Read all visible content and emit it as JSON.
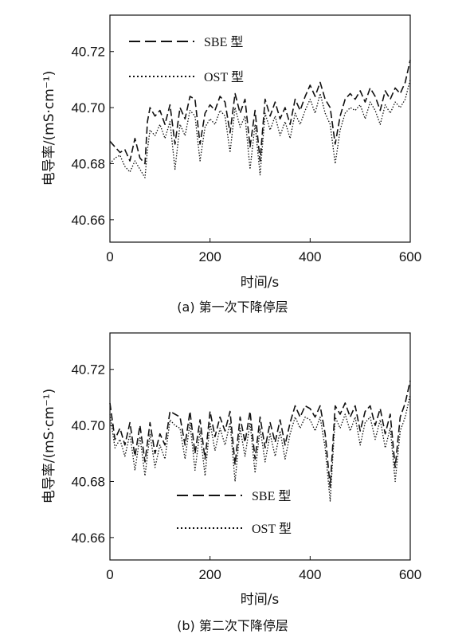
{
  "chart_data": [
    {
      "type": "line",
      "caption": "(a)  第一次下降停层",
      "xlabel": "时间/s",
      "ylabel": "电导率/(mS·cm⁻¹)",
      "xlim": [
        0,
        600
      ],
      "ylim": [
        40.652,
        40.733
      ],
      "xticks": [
        "0",
        "200",
        "400",
        "600"
      ],
      "yticks": [
        "40.66",
        "40.68",
        "40.70",
        "40.72"
      ],
      "legend_position": "top-left",
      "series": [
        {
          "name": "SBE 型",
          "style": "dashed",
          "x": [
            0,
            10,
            20,
            30,
            40,
            50,
            60,
            70,
            75,
            80,
            90,
            100,
            110,
            120,
            130,
            140,
            150,
            160,
            170,
            180,
            190,
            200,
            210,
            220,
            230,
            240,
            250,
            260,
            270,
            280,
            290,
            300,
            310,
            320,
            330,
            340,
            350,
            360,
            370,
            380,
            390,
            400,
            410,
            420,
            430,
            440,
            450,
            460,
            470,
            480,
            490,
            500,
            510,
            520,
            530,
            540,
            550,
            560,
            570,
            580,
            590,
            600
          ],
          "values": [
            40.688,
            40.686,
            40.684,
            40.685,
            40.681,
            40.689,
            40.682,
            40.68,
            40.695,
            40.7,
            40.697,
            40.699,
            40.694,
            40.701,
            40.687,
            40.7,
            40.696,
            40.704,
            40.703,
            40.687,
            40.698,
            40.701,
            40.699,
            40.704,
            40.702,
            40.691,
            40.705,
            40.698,
            40.703,
            40.686,
            40.699,
            40.681,
            40.703,
            40.697,
            40.702,
            40.696,
            40.7,
            40.694,
            40.703,
            40.699,
            40.704,
            40.708,
            40.704,
            40.709,
            40.703,
            40.7,
            40.687,
            40.697,
            40.703,
            40.705,
            40.703,
            40.706,
            40.702,
            40.707,
            40.704,
            40.699,
            40.706,
            40.703,
            40.707,
            40.705,
            40.709,
            40.717
          ]
        },
        {
          "name": "OST 型",
          "style": "dotted",
          "x": [
            0,
            10,
            20,
            30,
            40,
            50,
            60,
            70,
            75,
            80,
            90,
            100,
            110,
            120,
            130,
            140,
            150,
            160,
            170,
            180,
            190,
            200,
            210,
            220,
            230,
            240,
            250,
            260,
            270,
            280,
            290,
            300,
            310,
            320,
            330,
            340,
            350,
            360,
            370,
            380,
            390,
            400,
            410,
            420,
            430,
            440,
            450,
            460,
            470,
            480,
            490,
            500,
            510,
            520,
            530,
            540,
            550,
            560,
            570,
            580,
            590,
            600
          ],
          "values": [
            40.68,
            40.682,
            40.683,
            40.679,
            40.677,
            40.681,
            40.678,
            40.675,
            40.685,
            40.692,
            40.69,
            40.694,
            40.689,
            40.695,
            40.678,
            40.694,
            40.69,
            40.699,
            40.697,
            40.681,
            40.693,
            40.696,
            40.694,
            40.699,
            40.697,
            40.684,
            40.7,
            40.693,
            40.697,
            40.678,
            40.694,
            40.676,
            40.698,
            40.692,
            40.697,
            40.69,
            40.695,
            40.689,
            40.698,
            40.694,
            40.699,
            40.703,
            40.698,
            40.705,
            40.698,
            40.694,
            40.68,
            40.692,
            40.698,
            40.7,
            40.699,
            40.701,
            40.696,
            40.702,
            40.699,
            40.694,
            40.701,
            40.698,
            40.702,
            40.7,
            40.703,
            40.71
          ]
        }
      ]
    },
    {
      "type": "line",
      "caption": "(b)  第二次下降停层",
      "xlabel": "时间/s",
      "ylabel": "电导率/(mS·cm⁻¹)",
      "xlim": [
        0,
        600
      ],
      "ylim": [
        40.652,
        40.733
      ],
      "xticks": [
        "0",
        "200",
        "400",
        "600"
      ],
      "yticks": [
        "40.66",
        "40.68",
        "40.70",
        "40.72"
      ],
      "legend_position": "bottom-center",
      "series": [
        {
          "name": "SBE 型",
          "style": "dashed",
          "x": [
            0,
            10,
            20,
            30,
            40,
            50,
            60,
            70,
            80,
            90,
            100,
            110,
            120,
            130,
            140,
            150,
            160,
            170,
            180,
            190,
            200,
            210,
            220,
            230,
            240,
            250,
            260,
            270,
            280,
            290,
            300,
            310,
            320,
            330,
            340,
            350,
            360,
            370,
            380,
            390,
            400,
            410,
            420,
            430,
            440,
            450,
            460,
            470,
            480,
            490,
            500,
            510,
            520,
            530,
            540,
            550,
            560,
            570,
            580,
            590,
            600
          ],
          "values": [
            40.708,
            40.695,
            40.699,
            40.693,
            40.701,
            40.689,
            40.7,
            40.687,
            40.701,
            40.69,
            40.697,
            40.693,
            40.705,
            40.704,
            40.703,
            40.693,
            40.705,
            40.69,
            40.702,
            40.688,
            40.705,
            40.696,
            40.703,
            40.698,
            40.705,
            40.686,
            40.703,
            40.694,
            40.705,
            40.688,
            40.703,
            40.692,
            40.701,
            40.694,
            40.702,
            40.693,
            40.701,
            40.707,
            40.703,
            40.707,
            40.706,
            40.703,
            40.707,
            40.697,
            40.678,
            40.707,
            40.704,
            40.708,
            40.703,
            40.707,
            40.698,
            40.705,
            40.707,
            40.7,
            40.706,
            40.697,
            40.704,
            40.685,
            40.703,
            40.708,
            40.716
          ]
        },
        {
          "name": "OST 型",
          "style": "dotted",
          "x": [
            0,
            10,
            20,
            30,
            40,
            50,
            60,
            70,
            80,
            90,
            100,
            110,
            120,
            130,
            140,
            150,
            160,
            170,
            180,
            190,
            200,
            210,
            220,
            230,
            240,
            250,
            260,
            270,
            280,
            290,
            300,
            310,
            320,
            330,
            340,
            350,
            360,
            370,
            380,
            390,
            400,
            410,
            420,
            430,
            440,
            450,
            460,
            470,
            480,
            490,
            500,
            510,
            520,
            530,
            540,
            550,
            560,
            570,
            580,
            590,
            600
          ],
          "values": [
            40.704,
            40.692,
            40.695,
            40.689,
            40.697,
            40.684,
            40.696,
            40.682,
            40.697,
            40.685,
            40.693,
            40.688,
            40.702,
            40.7,
            40.699,
            40.688,
            40.701,
            40.684,
            40.698,
            40.682,
            40.701,
            40.691,
            40.699,
            40.693,
            40.701,
            40.68,
            40.699,
            40.689,
            40.701,
            40.683,
            40.699,
            40.687,
            40.697,
            40.689,
            40.698,
            40.688,
            40.697,
            40.703,
            40.699,
            40.703,
            40.702,
            40.698,
            40.703,
            40.692,
            40.673,
            40.703,
            40.699,
            40.704,
            40.698,
            40.703,
            40.693,
            40.701,
            40.703,
            40.695,
            40.702,
            40.692,
            40.699,
            40.68,
            40.698,
            40.703,
            40.711
          ]
        }
      ]
    }
  ]
}
